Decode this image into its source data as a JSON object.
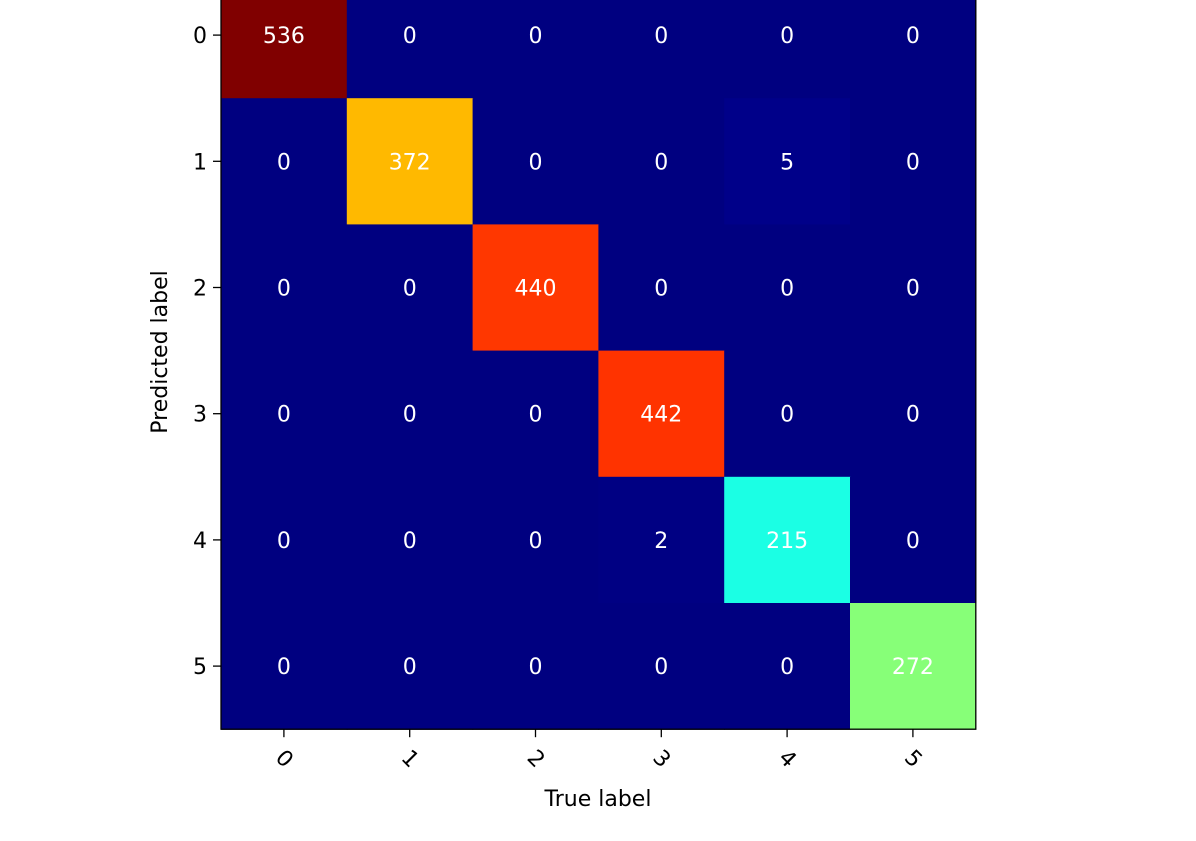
{
  "chart_data": {
    "type": "heatmap",
    "title": "",
    "xlabel": "True label",
    "ylabel": "Predicted label",
    "x_categories": [
      "0",
      "1",
      "2",
      "3",
      "4",
      "5"
    ],
    "y_categories": [
      "0",
      "1",
      "2",
      "3",
      "4",
      "5"
    ],
    "x_tick_rotation_deg": 45,
    "matrix": [
      [
        536,
        0,
        0,
        0,
        0,
        0
      ],
      [
        0,
        372,
        0,
        0,
        5,
        0
      ],
      [
        0,
        0,
        440,
        0,
        0,
        0
      ],
      [
        0,
        0,
        0,
        442,
        0,
        0
      ],
      [
        0,
        0,
        0,
        2,
        215,
        0
      ],
      [
        0,
        0,
        0,
        0,
        0,
        272
      ]
    ],
    "colormap": "jet",
    "value_range": [
      0,
      536
    ],
    "text_color": "#ffffff",
    "grid": false
  }
}
